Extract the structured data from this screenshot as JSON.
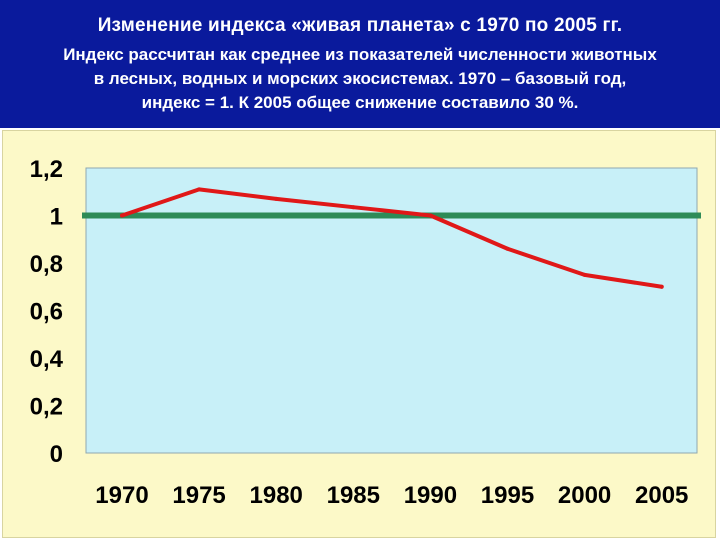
{
  "header": {
    "title": "Изменение индекса «живая планета» с 1970 по 2005 гг.",
    "subtitle_line1": "Индекс рассчитан как среднее из показателей численности животных",
    "subtitle_line2": "в лесных,  водных и морских экосистемах.  1970 – базовый год,",
    "subtitle_line3": "индекс = 1. К 2005  общее снижение составило 30 %."
  },
  "colors": {
    "header_bg": "#0a1a9c",
    "plot_bg": "#c8f0f8",
    "chart_bg": "#fcf9c8",
    "index_line": "#e01818",
    "baseline": "#2e8b57"
  },
  "chart_data": {
    "type": "line",
    "categories": [
      "1970",
      "1975",
      "1980",
      "1985",
      "1990",
      "1995",
      "2000",
      "2005"
    ],
    "y_tick_labels": [
      "0",
      "0,2",
      "0,4",
      "0,6",
      "0,8",
      "1",
      "1,2"
    ],
    "ylim": [
      0,
      1.2
    ],
    "series": [
      {
        "values": [
          1.0,
          1.11,
          1.07,
          1.035,
          1.0,
          0.86,
          0.75,
          0.7
        ],
        "color": "#e01818"
      },
      {
        "values": [
          1.0,
          1.0,
          1.0,
          1.0,
          1.0,
          1.0,
          1.0,
          1.0
        ],
        "color": "#2e8b57"
      }
    ],
    "grid": false,
    "legend": "none"
  }
}
